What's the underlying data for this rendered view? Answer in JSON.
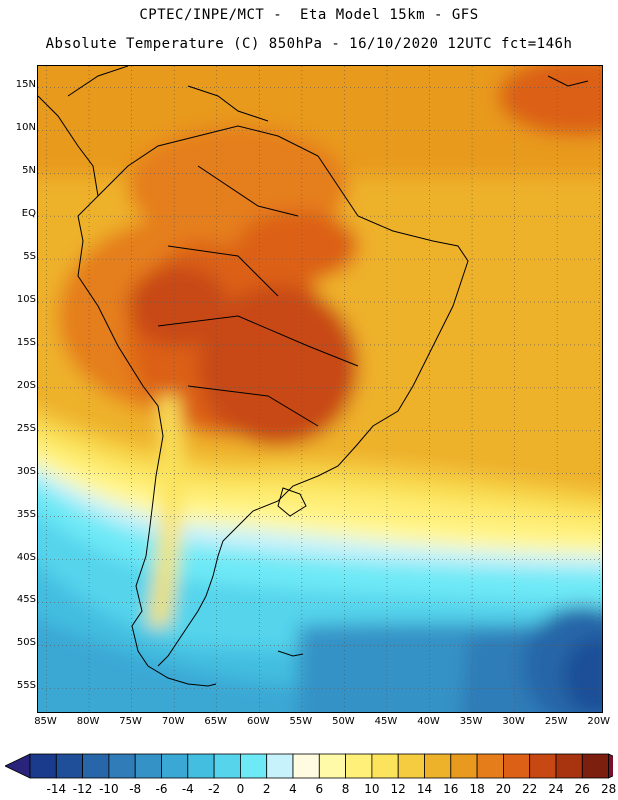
{
  "titles": {
    "line1": "CPTEC/INPE/MCT -  Eta Model 15km - GFS",
    "line2": "Absolute Temperature (C) 850hPa - 16/10/2020 12UTC fct=146h"
  },
  "map": {
    "lat_labels": [
      "15N",
      "10N",
      "5N",
      "EQ",
      "5S",
      "10S",
      "15S",
      "20S",
      "25S",
      "30S",
      "35S",
      "40S",
      "45S",
      "50S",
      "55S"
    ],
    "lon_labels": [
      "85W",
      "80W",
      "75W",
      "70W",
      "65W",
      "60W",
      "55W",
      "50W",
      "45W",
      "40W",
      "35W",
      "30W",
      "25W",
      "20W"
    ],
    "lat_range_deg": [
      17.5,
      -58
    ],
    "lon_range_deg": [
      -86,
      -19.5
    ]
  },
  "colorbar": {
    "labels": [
      "-14",
      "-12",
      "-10",
      "-8",
      "-6",
      "-4",
      "-2",
      "0",
      "2",
      "4",
      "6",
      "8",
      "10",
      "12",
      "14",
      "16",
      "18",
      "20",
      "22",
      "24",
      "26",
      "28"
    ],
    "colors": [
      "#1a3a8c",
      "#1f4f98",
      "#2766a8",
      "#2f7cb8",
      "#3592c6",
      "#3aa8d4",
      "#43bde0",
      "#55d4ec",
      "#6ee9f6",
      "#c8f2fb",
      "#fffbe0",
      "#fffaa8",
      "#fff07a",
      "#fbe35c",
      "#f5cc3f",
      "#eeb12a",
      "#e89a1f",
      "#e57e1a",
      "#dc6116",
      "#c84813",
      "#a8330f",
      "#7c1f0f"
    ],
    "under_color": "#2a237a",
    "over_color": "#7a0f2a"
  }
}
